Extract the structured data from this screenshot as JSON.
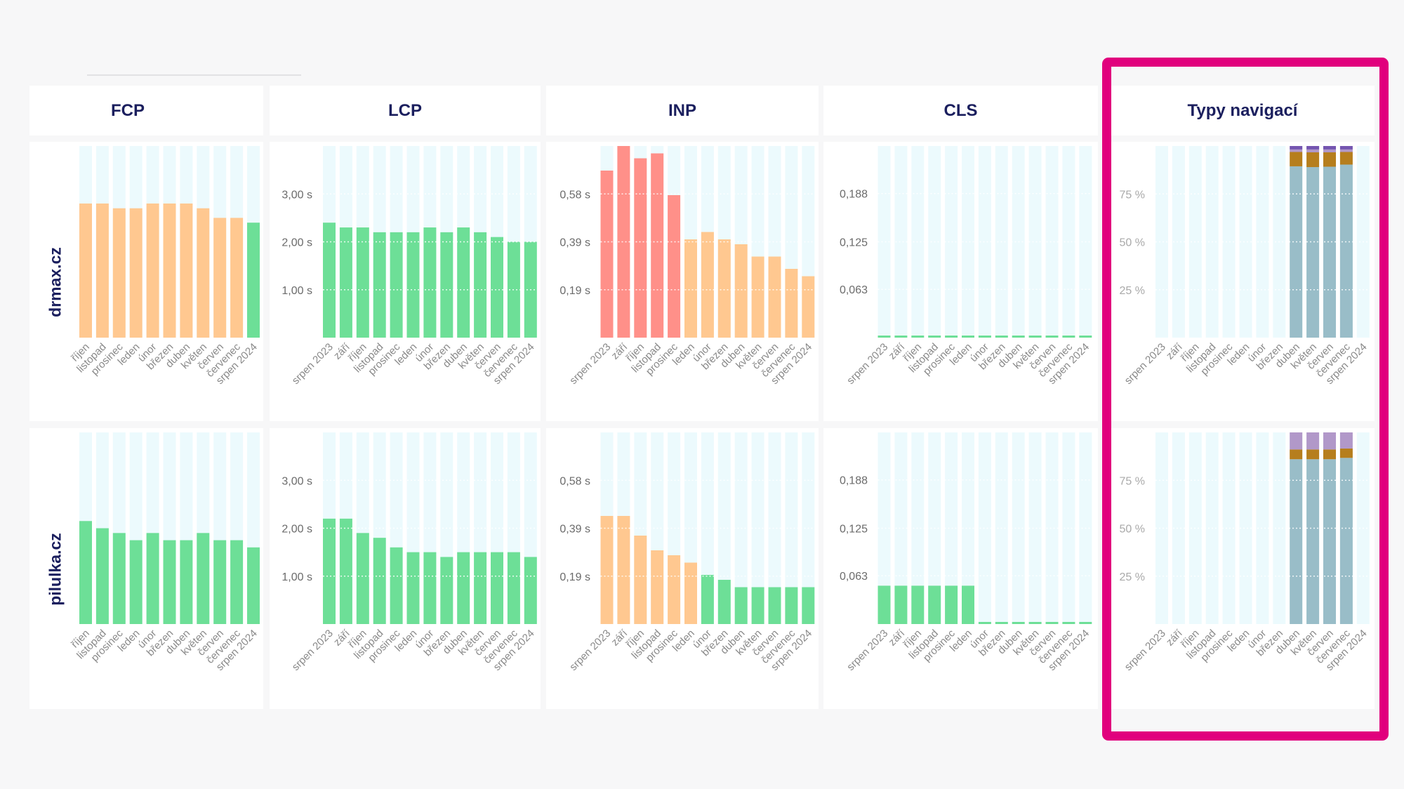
{
  "headers": {
    "fcp": "FCP",
    "lcp": "LCP",
    "inp": "INP",
    "cls": "CLS",
    "nav": "Typy navigací"
  },
  "rows": [
    "drmax.cz",
    "pilulka.cz"
  ],
  "colors": {
    "good": "#6ddf97",
    "needs_improvement": "#ffc890",
    "poor": "#ff9089",
    "slot": "#ecfafd",
    "highlight": "#e1007d",
    "stack": [
      "#99bdc8",
      "#b67e1d",
      "#b198c9",
      "#7455b0"
    ]
  },
  "chart_data": [
    {
      "type": "bar",
      "metric": "FCP",
      "site": "drmax.cz",
      "categories": [
        "říjen",
        "listopad",
        "prosinec",
        "leden",
        "únor",
        "březen",
        "duben",
        "květen",
        "červen",
        "červenec",
        "srpen 2024"
      ],
      "values": [
        2.8,
        2.8,
        2.7,
        2.7,
        2.8,
        2.8,
        2.8,
        2.7,
        2.5,
        2.5,
        2.4
      ],
      "status": [
        "ni",
        "ni",
        "ni",
        "ni",
        "ni",
        "ni",
        "ni",
        "ni",
        "ni",
        "ni",
        "good"
      ],
      "ylim": [
        0,
        4
      ],
      "ticks": [],
      "tick_labels": []
    },
    {
      "type": "bar",
      "metric": "LCP",
      "site": "drmax.cz",
      "categories": [
        "srpen 2023",
        "září",
        "říjen",
        "listopad",
        "prosinec",
        "leden",
        "únor",
        "březen",
        "duben",
        "květen",
        "červen",
        "červenec",
        "srpen 2024"
      ],
      "values": [
        2.4,
        2.3,
        2.3,
        2.2,
        2.2,
        2.2,
        2.3,
        2.2,
        2.3,
        2.2,
        2.1,
        2.0,
        2.0
      ],
      "status": [
        "good",
        "good",
        "good",
        "good",
        "good",
        "good",
        "good",
        "good",
        "good",
        "good",
        "good",
        "good",
        "good"
      ],
      "ylim": [
        0,
        4
      ],
      "ticks": [
        1,
        2,
        3
      ],
      "tick_labels": [
        "1,00 s",
        "2,00 s",
        "3,00 s"
      ]
    },
    {
      "type": "bar",
      "metric": "INP",
      "site": "drmax.cz",
      "categories": [
        "srpen 2023",
        "září",
        "říjen",
        "listopad",
        "prosinec",
        "leden",
        "únor",
        "březen",
        "duben",
        "květen",
        "červen",
        "červenec",
        "srpen 2024"
      ],
      "values": [
        0.68,
        0.78,
        0.73,
        0.75,
        0.58,
        0.4,
        0.43,
        0.4,
        0.38,
        0.33,
        0.33,
        0.28,
        0.25
      ],
      "status": [
        "poor",
        "poor",
        "poor",
        "poor",
        "poor",
        "ni",
        "ni",
        "ni",
        "ni",
        "ni",
        "ni",
        "ni",
        "ni"
      ],
      "ylim": [
        0,
        0.78
      ],
      "ticks": [
        0.195,
        0.39,
        0.585
      ],
      "tick_labels": [
        "0,19 s",
        "0,39 s",
        "0,58 s"
      ]
    },
    {
      "type": "bar",
      "metric": "CLS",
      "site": "drmax.cz",
      "categories": [
        "srpen 2023",
        "září",
        "říjen",
        "listopad",
        "prosinec",
        "leden",
        "únor",
        "březen",
        "duben",
        "květen",
        "červen",
        "červenec",
        "srpen 2024"
      ],
      "values": [
        0.002,
        0.002,
        0.002,
        0.002,
        0.002,
        0.002,
        0.002,
        0.002,
        0.002,
        0.002,
        0.002,
        0.002,
        0.002
      ],
      "status": [
        "good",
        "good",
        "good",
        "good",
        "good",
        "good",
        "good",
        "good",
        "good",
        "good",
        "good",
        "good",
        "good"
      ],
      "ylim": [
        0,
        0.25
      ],
      "ticks": [
        0.063,
        0.125,
        0.188
      ],
      "tick_labels": [
        "0,063",
        "0,125",
        "0,188"
      ]
    },
    {
      "type": "stacked-bar",
      "metric": "Typy navigací",
      "site": "drmax.cz",
      "categories": [
        "srpen 2023",
        "září",
        "říjen",
        "listopad",
        "prosinec",
        "leden",
        "únor",
        "březen",
        "duben",
        "květen",
        "červen",
        "červenec",
        "srpen 2024"
      ],
      "series": [
        {
          "values": [
            null,
            null,
            null,
            null,
            null,
            null,
            null,
            null,
            89.4,
            89.0,
            89.2,
            90.3,
            null
          ]
        },
        {
          "values": [
            null,
            null,
            null,
            null,
            null,
            null,
            null,
            null,
            7.5,
            7.7,
            7.5,
            6.6,
            null
          ]
        },
        {
          "values": [
            null,
            null,
            null,
            null,
            null,
            null,
            null,
            null,
            1.3,
            1.5,
            1.5,
            1.3,
            null
          ]
        },
        {
          "values": [
            null,
            null,
            null,
            null,
            null,
            null,
            null,
            null,
            1.8,
            1.8,
            1.8,
            1.8,
            null
          ]
        }
      ],
      "ylim": [
        0,
        100
      ],
      "ticks": [
        25,
        50,
        75
      ],
      "tick_labels": [
        "25 %",
        "50 %",
        "75 %"
      ]
    },
    {
      "type": "bar",
      "metric": "FCP",
      "site": "pilulka.cz",
      "categories": [
        "říjen",
        "listopad",
        "prosinec",
        "leden",
        "únor",
        "březen",
        "duben",
        "květen",
        "červen",
        "červenec",
        "srpen 2024"
      ],
      "values": [
        2.15,
        2.0,
        1.9,
        1.75,
        1.9,
        1.75,
        1.75,
        1.9,
        1.75,
        1.75,
        1.6
      ],
      "status": [
        "good",
        "good",
        "good",
        "good",
        "good",
        "good",
        "good",
        "good",
        "good",
        "good",
        "good"
      ],
      "ylim": [
        0,
        4
      ],
      "ticks": [],
      "tick_labels": []
    },
    {
      "type": "bar",
      "metric": "LCP",
      "site": "pilulka.cz",
      "categories": [
        "srpen 2023",
        "září",
        "říjen",
        "listopad",
        "prosinec",
        "leden",
        "únor",
        "březen",
        "duben",
        "květen",
        "červen",
        "červenec",
        "srpen 2024"
      ],
      "values": [
        2.2,
        2.2,
        1.9,
        1.8,
        1.6,
        1.5,
        1.5,
        1.4,
        1.5,
        1.5,
        1.5,
        1.5,
        1.4
      ],
      "status": [
        "good",
        "good",
        "good",
        "good",
        "good",
        "good",
        "good",
        "good",
        "good",
        "good",
        "good",
        "good",
        "good"
      ],
      "ylim": [
        0,
        4
      ],
      "ticks": [
        1,
        2,
        3
      ],
      "tick_labels": [
        "1,00 s",
        "2,00 s",
        "3,00 s"
      ]
    },
    {
      "type": "bar",
      "metric": "INP",
      "site": "pilulka.cz",
      "categories": [
        "srpen 2023",
        "září",
        "říjen",
        "listopad",
        "prosinec",
        "leden",
        "únor",
        "březen",
        "duben",
        "květen",
        "červen",
        "červenec",
        "srpen 2024"
      ],
      "values": [
        0.44,
        0.44,
        0.36,
        0.3,
        0.28,
        0.25,
        0.2,
        0.18,
        0.15,
        0.15,
        0.15,
        0.15,
        0.15
      ],
      "status": [
        "ni",
        "ni",
        "ni",
        "ni",
        "ni",
        "ni",
        "good",
        "good",
        "good",
        "good",
        "good",
        "good",
        "good"
      ],
      "ylim": [
        0,
        0.78
      ],
      "ticks": [
        0.195,
        0.39,
        0.585
      ],
      "tick_labels": [
        "0,19 s",
        "0,39 s",
        "0,58 s"
      ]
    },
    {
      "type": "bar",
      "metric": "CLS",
      "site": "pilulka.cz",
      "categories": [
        "srpen 2023",
        "září",
        "říjen",
        "listopad",
        "prosinec",
        "leden",
        "únor",
        "březen",
        "duben",
        "květen",
        "červen",
        "červenec",
        "srpen 2024"
      ],
      "values": [
        0.05,
        0.05,
        0.05,
        0.05,
        0.05,
        0.05,
        0.002,
        0.002,
        0.002,
        0.002,
        0.002,
        0.002,
        0.002
      ],
      "status": [
        "good",
        "good",
        "good",
        "good",
        "good",
        "good",
        "good",
        "good",
        "good",
        "good",
        "good",
        "good",
        "good"
      ],
      "ylim": [
        0,
        0.25
      ],
      "ticks": [
        0.063,
        0.125,
        0.188
      ],
      "tick_labels": [
        "0,063",
        "0,125",
        "0,188"
      ]
    },
    {
      "type": "stacked-bar",
      "metric": "Typy navigací",
      "site": "pilulka.cz",
      "categories": [
        "srpen 2023",
        "září",
        "říjen",
        "listopad",
        "prosinec",
        "leden",
        "únor",
        "březen",
        "duben",
        "květen",
        "červen",
        "červenec",
        "srpen 2024"
      ],
      "series": [
        {
          "values": [
            null,
            null,
            null,
            null,
            null,
            null,
            null,
            null,
            86.0,
            86.0,
            86.0,
            86.7,
            null
          ]
        },
        {
          "values": [
            null,
            null,
            null,
            null,
            null,
            null,
            null,
            null,
            5.1,
            5.1,
            5.1,
            4.9,
            null
          ]
        },
        {
          "values": [
            null,
            null,
            null,
            null,
            null,
            null,
            null,
            null,
            8.9,
            8.9,
            8.9,
            8.4,
            null
          ]
        },
        {
          "values": [
            null,
            null,
            null,
            null,
            null,
            null,
            null,
            null,
            0,
            0,
            0,
            0,
            null
          ]
        }
      ],
      "ylim": [
        0,
        100
      ],
      "ticks": [
        25,
        50,
        75
      ],
      "tick_labels": [
        "25 %",
        "50 %",
        "75 %"
      ]
    }
  ]
}
